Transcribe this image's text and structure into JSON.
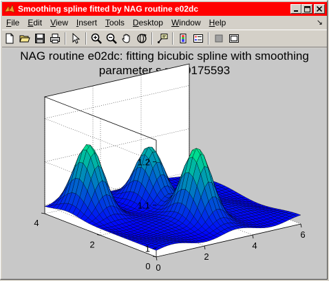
{
  "window": {
    "title": "Smoothing spline fitted by NAG routine e02dc",
    "buttons": {
      "minimize": "_",
      "maximize": "□",
      "close": "×"
    }
  },
  "menu": {
    "items": [
      {
        "u": "F",
        "rest": "ile"
      },
      {
        "u": "E",
        "rest": "dit"
      },
      {
        "u": "V",
        "rest": "iew"
      },
      {
        "u": "I",
        "rest": "nsert"
      },
      {
        "u": "T",
        "rest": "ools"
      },
      {
        "u": "D",
        "rest": "esktop"
      },
      {
        "u": "W",
        "rest": "indow"
      },
      {
        "u": "H",
        "rest": "elp"
      }
    ],
    "arrow": "↘"
  },
  "toolbar": {
    "icons": [
      "new-file-icon",
      "open-folder-icon",
      "save-icon",
      "print-icon",
      "edit-arrow-icon",
      "zoom-in-icon",
      "zoom-out-icon",
      "pan-hand-icon",
      "rotate-3d-icon",
      "data-cursor-icon",
      "colorbar-icon",
      "legend-icon",
      "hide-tools-icon",
      "show-tools-icon"
    ]
  },
  "plot": {
    "title_line1": "NAG routine e02dc: fitting bicubic spline with smoothing",
    "title_line2": "parameter s = 0.0175593"
  },
  "chart_data": {
    "type": "surface",
    "title": "NAG routine e02dc: fitting bicubic spline with smoothing parameter s = 0.0175593",
    "x_ticks": [
      "0",
      "2",
      "4",
      "6"
    ],
    "y_ticks": [
      "0",
      "2",
      "4"
    ],
    "z_ticks": [
      "1",
      "1.1",
      "1.2"
    ],
    "xlim": [
      0,
      6
    ],
    "ylim": [
      0,
      4
    ],
    "zlim": [
      0.98,
      1.25
    ],
    "grid": true,
    "colormap": "winter",
    "peaks": [
      {
        "x": 0.9,
        "y": 3.2,
        "height": 1.15
      },
      {
        "x": 3.2,
        "y": 3.0,
        "height": 1.12
      },
      {
        "x": 3.2,
        "y": 1.3,
        "height": 1.17
      }
    ],
    "baseline": 1.0
  }
}
